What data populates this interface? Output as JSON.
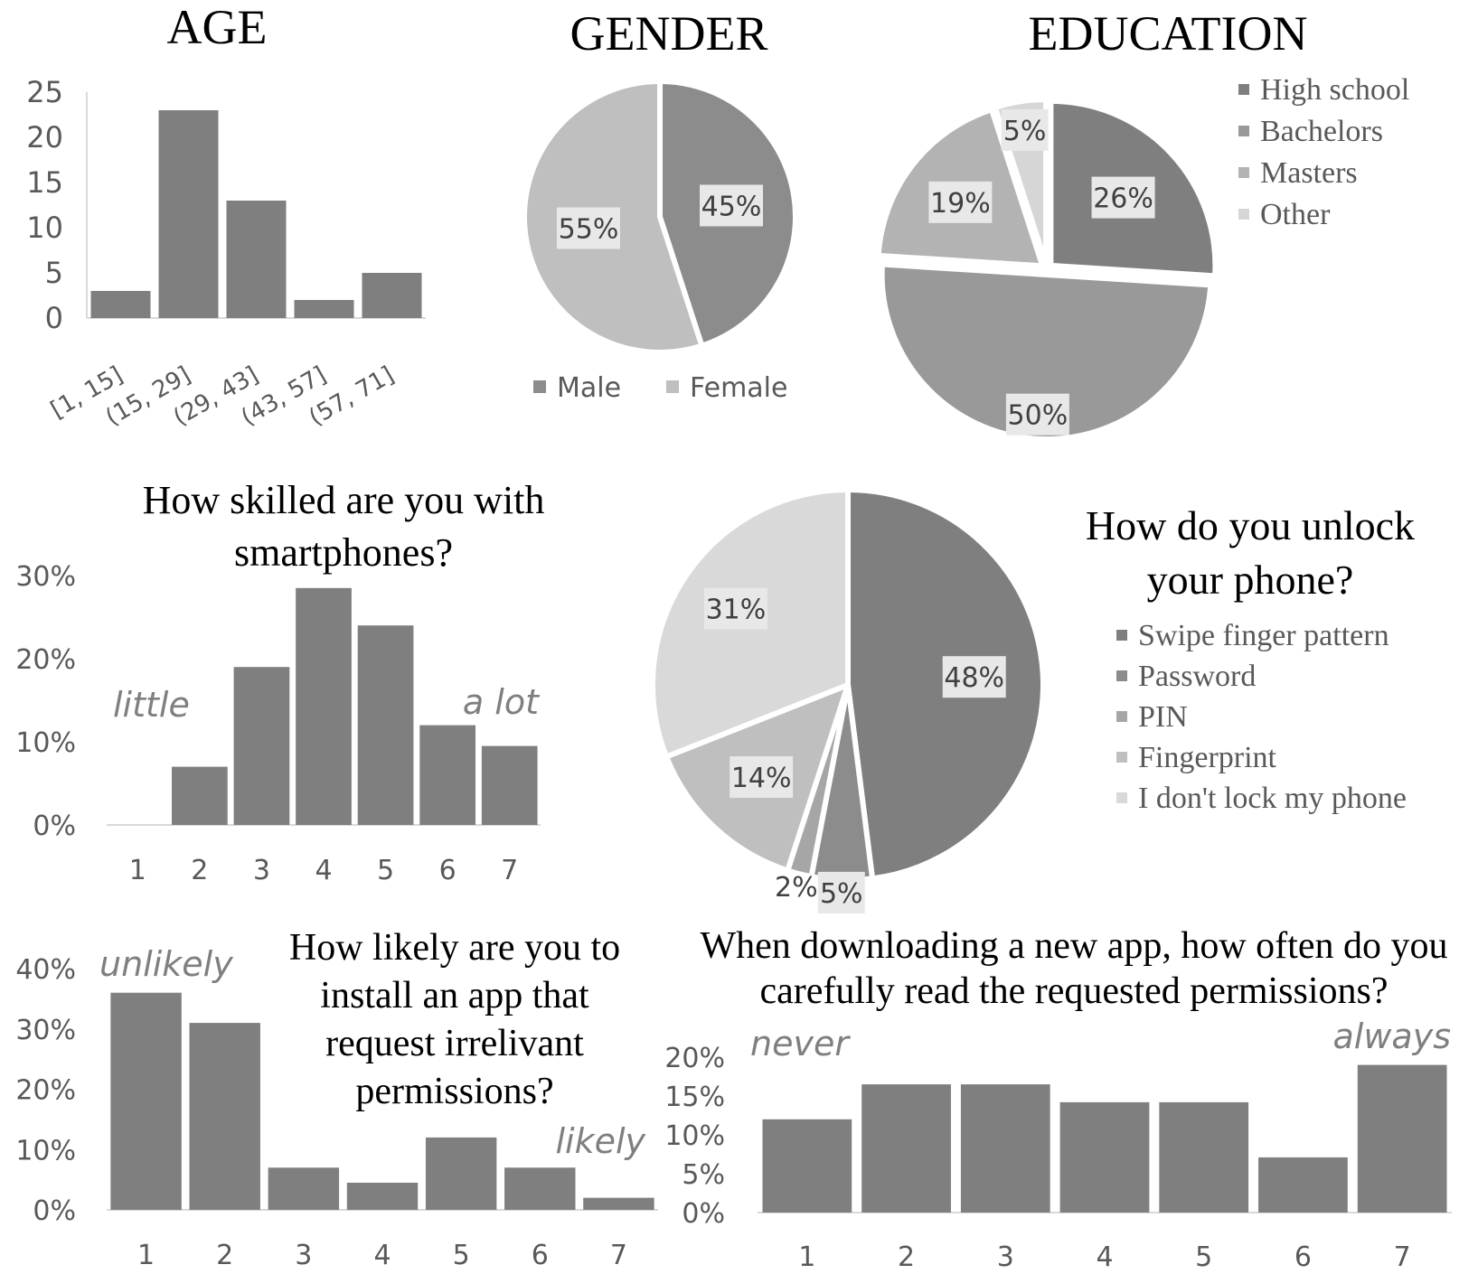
{
  "colors": {
    "bar": "#7f7f7f",
    "axis": "#d9d9d9",
    "tick": "#595959",
    "label_bg": "#e8e8e8",
    "pie_high_school": "#7f7f7f",
    "pie_bachelors": "#999999",
    "pie_masters": "#b3b3b3",
    "pie_other": "#d6d6d6",
    "pie_male": "#8c8c8c",
    "pie_female": "#bfbfbf"
  },
  "chart_data": [
    {
      "type": "bar",
      "title": "AGE",
      "categories": [
        "[1, 15]",
        "(15, 29]",
        "(29, 43]",
        "(43, 57]",
        "(57, 71]"
      ],
      "values": [
        3,
        23,
        13,
        2,
        5
      ],
      "ylim": [
        0,
        25
      ],
      "yticks": [
        "0",
        "5",
        "10",
        "15",
        "20",
        "25"
      ]
    },
    {
      "type": "pie",
      "title": "GENDER",
      "labels": [
        "Male",
        "Female"
      ],
      "values": [
        45,
        55
      ],
      "value_labels": [
        "45%",
        "55%"
      ],
      "legend": "bottom"
    },
    {
      "type": "pie",
      "title": "EDUCATION",
      "labels": [
        "High school",
        "Bachelors",
        "Masters",
        "Other"
      ],
      "values": [
        26,
        50,
        19,
        5
      ],
      "value_labels": [
        "26%",
        "50%",
        "19%",
        "5%"
      ],
      "legend": "right"
    },
    {
      "type": "bar",
      "title": "How skilled are you with smartphones?",
      "title_lines": [
        "How skilled are you with",
        "smartphones?"
      ],
      "categories": [
        "1",
        "2",
        "3",
        "4",
        "5",
        "6",
        "7"
      ],
      "values": [
        0,
        7,
        19,
        28.5,
        24,
        12,
        9.5
      ],
      "ylim": [
        0,
        30
      ],
      "yticks": [
        "0%",
        "10%",
        "20%",
        "30%"
      ],
      "annotations": [
        "little",
        "a lot"
      ]
    },
    {
      "type": "pie",
      "title": "How do you unlock your phone?",
      "title_lines": [
        "How do you unlock",
        "your phone?"
      ],
      "labels": [
        "Swipe finger pattern",
        "Password",
        "PIN",
        "Fingerprint",
        "I don't lock my phone"
      ],
      "values": [
        48,
        5,
        2,
        14,
        31
      ],
      "value_labels": [
        "48%",
        "5%",
        "2%",
        "14%",
        "31%"
      ],
      "legend": "right"
    },
    {
      "type": "bar",
      "title": "How likely are you to install an app that request irrelivant permissions?",
      "title_lines": [
        "How likely are you to",
        "install an app that",
        "request irrelivant",
        "permissions?"
      ],
      "categories": [
        "1",
        "2",
        "3",
        "4",
        "5",
        "6",
        "7"
      ],
      "values": [
        36,
        31,
        7,
        4.5,
        12,
        7,
        2
      ],
      "ylim": [
        0,
        40
      ],
      "yticks": [
        "0%",
        "10%",
        "20%",
        "30%",
        "40%"
      ],
      "annotations": [
        "unlikely",
        "likely"
      ]
    },
    {
      "type": "bar",
      "title": "When downloading a new app, how often do you carefully read the requested permissions?",
      "title_lines": [
        "When downloading a new app, how often do you",
        "carefully read the requested permissions?"
      ],
      "categories": [
        "1",
        "2",
        "3",
        "4",
        "5",
        "6",
        "7"
      ],
      "values": [
        12,
        16.5,
        16.5,
        14.2,
        14.2,
        7.1,
        19
      ],
      "ylim": [
        0,
        20
      ],
      "yticks": [
        "0%",
        "5%",
        "10%",
        "15%",
        "20%"
      ],
      "annotations": [
        "never",
        "always"
      ]
    }
  ]
}
